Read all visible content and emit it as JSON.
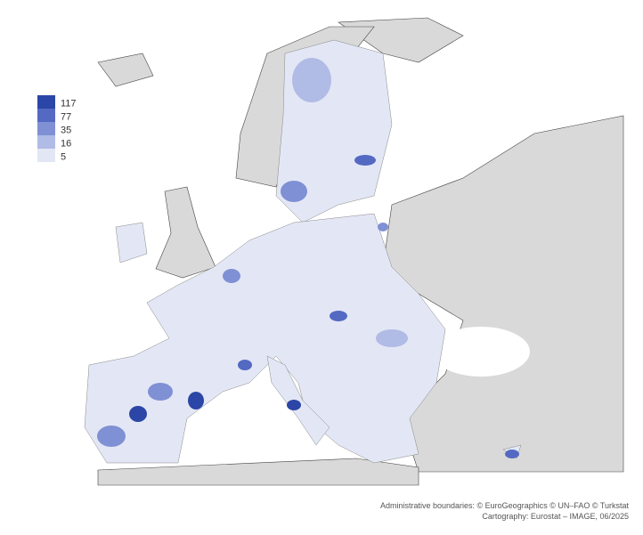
{
  "legend": {
    "classes": [
      {
        "value": 117,
        "color": "#2b46a6"
      },
      {
        "value": 77,
        "color": "#5369c2"
      },
      {
        "value": 35,
        "color": "#7f90d4"
      },
      {
        "value": 16,
        "color": "#b0bbe6"
      },
      {
        "value": 5,
        "color": "#e3e7f5"
      }
    ]
  },
  "credits": [
    "Administrative boundaries: © EuroGeographics © UN–FAO © Turkstat",
    "Cartography: Eurostat – IMAGE, 06/2025"
  ]
}
